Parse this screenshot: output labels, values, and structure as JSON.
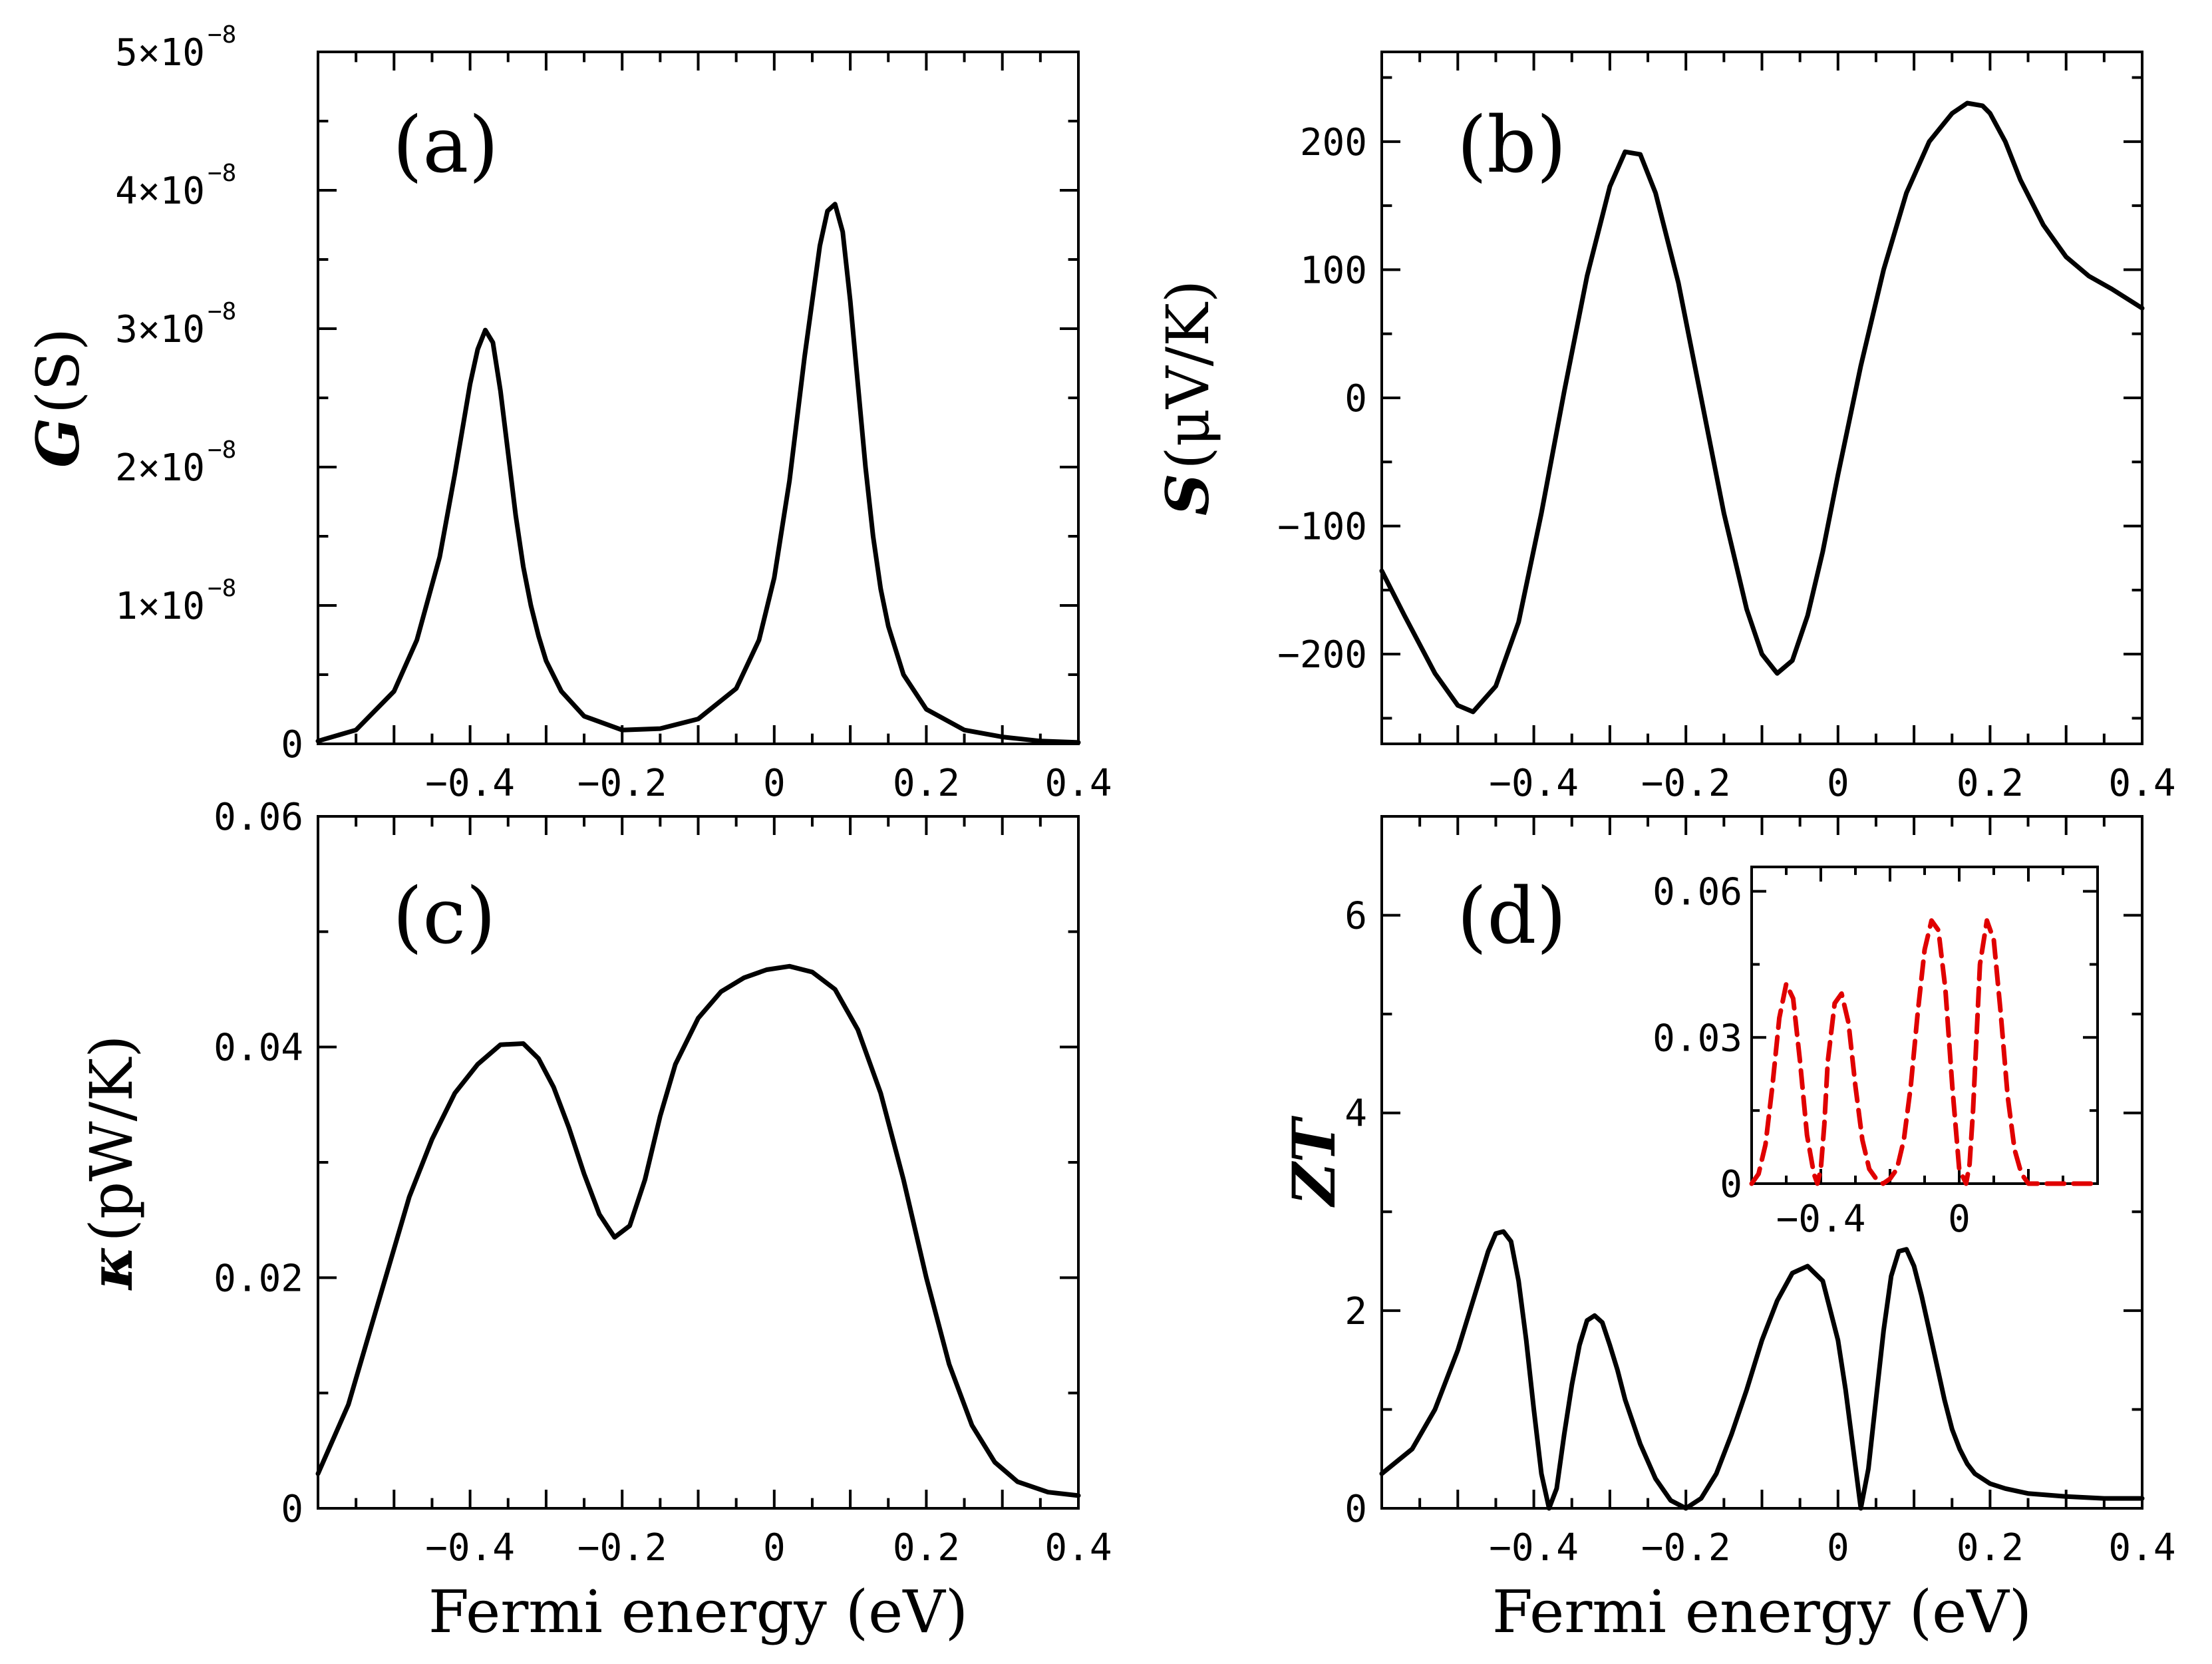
{
  "colors": {
    "main_curve": "#000000",
    "inset_curve": "#e00000"
  },
  "chart_data": [
    {
      "id": "a",
      "type": "line",
      "panel_label": "(a)",
      "ylabel_symbol": "G",
      "ylabel_unit": "(S)",
      "xlabel": "",
      "xlim": [
        -0.6,
        0.4
      ],
      "ylim": [
        0,
        5e-08
      ],
      "xticks": [
        {
          "v": -0.4,
          "label": "-0.4"
        },
        {
          "v": -0.2,
          "label": "-0.2"
        },
        {
          "v": 0,
          "label": "0"
        },
        {
          "v": 0.2,
          "label": "0.2"
        },
        {
          "v": 0.4,
          "label": "0.4"
        }
      ],
      "yticks": [
        {
          "v": 0,
          "label": "0"
        },
        {
          "v": 1e-08,
          "label": "1×10",
          "exp": "-8"
        },
        {
          "v": 2e-08,
          "label": "2×10",
          "exp": "-8"
        },
        {
          "v": 3e-08,
          "label": "3×10",
          "exp": "-8"
        },
        {
          "v": 4e-08,
          "label": "4×10",
          "exp": "-8"
        },
        {
          "v": 5e-08,
          "label": "5×10",
          "exp": "-8"
        }
      ],
      "series": [
        {
          "name": "G",
          "x": [
            -0.6,
            -0.55,
            -0.5,
            -0.47,
            -0.44,
            -0.42,
            -0.4,
            -0.39,
            -0.38,
            -0.37,
            -0.36,
            -0.35,
            -0.34,
            -0.33,
            -0.32,
            -0.31,
            -0.3,
            -0.28,
            -0.25,
            -0.2,
            -0.15,
            -0.1,
            -0.05,
            -0.02,
            0.0,
            0.02,
            0.04,
            0.06,
            0.07,
            0.08,
            0.09,
            0.1,
            0.11,
            0.12,
            0.13,
            0.14,
            0.15,
            0.17,
            0.2,
            0.25,
            0.3,
            0.35,
            0.4
          ],
          "y": [
            2e-10,
            1e-09,
            3.8e-09,
            7.5e-09,
            1.35e-08,
            1.95e-08,
            2.6e-08,
            2.85e-08,
            2.99e-08,
            2.9e-08,
            2.55e-08,
            2.1e-08,
            1.65e-08,
            1.28e-08,
            1e-08,
            7.8e-09,
            6e-09,
            3.8e-09,
            2e-09,
            1e-09,
            1.1e-09,
            1.8e-09,
            4e-09,
            7.5e-09,
            1.2e-08,
            1.9e-08,
            2.8e-08,
            3.6e-08,
            3.85e-08,
            3.9e-08,
            3.7e-08,
            3.2e-08,
            2.6e-08,
            2e-08,
            1.5e-08,
            1.12e-08,
            8.5e-09,
            5e-09,
            2.5e-09,
            1e-09,
            5e-10,
            2e-10,
            1e-10
          ]
        }
      ]
    },
    {
      "id": "b",
      "type": "line",
      "panel_label": "(b)",
      "ylabel_symbol": "S",
      "ylabel_unit": "(μV/K)",
      "xlabel": "",
      "xlim": [
        -0.6,
        0.4
      ],
      "ylim": [
        -270,
        270
      ],
      "xticks": [
        {
          "v": -0.4,
          "label": "-0.4"
        },
        {
          "v": -0.2,
          "label": "-0.2"
        },
        {
          "v": 0,
          "label": "0"
        },
        {
          "v": 0.2,
          "label": "0.2"
        },
        {
          "v": 0.4,
          "label": "0.4"
        }
      ],
      "yticks": [
        {
          "v": -200,
          "label": "-200"
        },
        {
          "v": -100,
          "label": "-100"
        },
        {
          "v": 0,
          "label": "0"
        },
        {
          "v": 100,
          "label": "100"
        },
        {
          "v": 200,
          "label": "200"
        }
      ],
      "series": [
        {
          "name": "S",
          "x": [
            -0.6,
            -0.57,
            -0.53,
            -0.5,
            -0.48,
            -0.45,
            -0.42,
            -0.39,
            -0.36,
            -0.33,
            -0.3,
            -0.28,
            -0.26,
            -0.24,
            -0.21,
            -0.18,
            -0.15,
            -0.12,
            -0.1,
            -0.08,
            -0.06,
            -0.04,
            -0.02,
            0.0,
            0.03,
            0.06,
            0.09,
            0.12,
            0.15,
            0.17,
            0.19,
            0.2,
            0.22,
            0.24,
            0.27,
            0.3,
            0.33,
            0.36,
            0.4
          ],
          "y": [
            -135,
            -170,
            -215,
            -240,
            -245,
            -225,
            -175,
            -90,
            5,
            95,
            165,
            192,
            190,
            160,
            90,
            0,
            -90,
            -165,
            -200,
            -215,
            -205,
            -170,
            -120,
            -60,
            25,
            100,
            160,
            200,
            222,
            230,
            228,
            222,
            200,
            170,
            135,
            110,
            95,
            85,
            70
          ]
        }
      ]
    },
    {
      "id": "c",
      "type": "line",
      "panel_label": "(c)",
      "ylabel_symbol": "κ",
      "ylabel_unit": "(pW/K)",
      "xlabel": "Fermi energy (eV)",
      "xlim": [
        -0.6,
        0.4
      ],
      "ylim": [
        0,
        0.06
      ],
      "xticks": [
        {
          "v": -0.4,
          "label": "-0.4"
        },
        {
          "v": -0.2,
          "label": "-0.2"
        },
        {
          "v": 0,
          "label": "0"
        },
        {
          "v": 0.2,
          "label": "0.2"
        },
        {
          "v": 0.4,
          "label": "0.4"
        }
      ],
      "yticks": [
        {
          "v": 0,
          "label": "0"
        },
        {
          "v": 0.02,
          "label": "0.02"
        },
        {
          "v": 0.04,
          "label": "0.04"
        },
        {
          "v": 0.06,
          "label": "0.06"
        }
      ],
      "series": [
        {
          "name": "kappa",
          "x": [
            -0.6,
            -0.56,
            -0.52,
            -0.48,
            -0.45,
            -0.42,
            -0.39,
            -0.36,
            -0.33,
            -0.31,
            -0.29,
            -0.27,
            -0.25,
            -0.23,
            -0.21,
            -0.19,
            -0.17,
            -0.15,
            -0.13,
            -0.1,
            -0.07,
            -0.04,
            -0.01,
            0.02,
            0.05,
            0.08,
            0.11,
            0.14,
            0.17,
            0.2,
            0.23,
            0.26,
            0.29,
            0.32,
            0.36,
            0.4
          ],
          "y": [
            0.003,
            0.009,
            0.018,
            0.027,
            0.032,
            0.036,
            0.0385,
            0.0402,
            0.0403,
            0.039,
            0.0365,
            0.033,
            0.029,
            0.0255,
            0.0235,
            0.0245,
            0.0285,
            0.034,
            0.0385,
            0.0425,
            0.0448,
            0.046,
            0.0467,
            0.047,
            0.0465,
            0.045,
            0.0415,
            0.036,
            0.0285,
            0.02,
            0.0125,
            0.0072,
            0.004,
            0.0023,
            0.0014,
            0.0011
          ]
        }
      ]
    },
    {
      "id": "d",
      "type": "line",
      "panel_label": "(d)",
      "ylabel_symbol": "ZT",
      "ylabel_unit": "",
      "xlabel": "Fermi energy (eV)",
      "xlim": [
        -0.6,
        0.4
      ],
      "ylim": [
        0,
        7
      ],
      "xticks": [
        {
          "v": -0.4,
          "label": "-0.4"
        },
        {
          "v": -0.2,
          "label": "-0.2"
        },
        {
          "v": 0,
          "label": "0"
        },
        {
          "v": 0.2,
          "label": "0.2"
        },
        {
          "v": 0.4,
          "label": "0.4"
        }
      ],
      "yticks": [
        {
          "v": 0,
          "label": "0"
        },
        {
          "v": 2,
          "label": "2"
        },
        {
          "v": 4,
          "label": "4"
        },
        {
          "v": 6,
          "label": "6"
        }
      ],
      "series": [
        {
          "name": "ZT",
          "x": [
            -0.6,
            -0.56,
            -0.53,
            -0.5,
            -0.48,
            -0.46,
            -0.45,
            -0.44,
            -0.43,
            -0.42,
            -0.41,
            -0.4,
            -0.39,
            -0.38,
            -0.37,
            -0.36,
            -0.35,
            -0.34,
            -0.33,
            -0.32,
            -0.31,
            -0.3,
            -0.29,
            -0.28,
            -0.26,
            -0.24,
            -0.22,
            -0.2,
            -0.18,
            -0.16,
            -0.14,
            -0.12,
            -0.1,
            -0.08,
            -0.06,
            -0.04,
            -0.02,
            0.0,
            0.01,
            0.02,
            0.03,
            0.04,
            0.05,
            0.06,
            0.07,
            0.08,
            0.09,
            0.1,
            0.11,
            0.12,
            0.13,
            0.14,
            0.15,
            0.16,
            0.17,
            0.18,
            0.2,
            0.22,
            0.25,
            0.3,
            0.35,
            0.4
          ],
          "y": [
            0.35,
            0.6,
            1.0,
            1.6,
            2.1,
            2.6,
            2.78,
            2.8,
            2.7,
            2.3,
            1.7,
            1.0,
            0.35,
            0.0,
            0.2,
            0.75,
            1.25,
            1.65,
            1.9,
            1.95,
            1.88,
            1.65,
            1.4,
            1.1,
            0.65,
            0.3,
            0.08,
            0.0,
            0.1,
            0.35,
            0.75,
            1.2,
            1.7,
            2.1,
            2.38,
            2.45,
            2.3,
            1.7,
            1.2,
            0.6,
            0.0,
            0.4,
            1.1,
            1.8,
            2.35,
            2.6,
            2.62,
            2.45,
            2.15,
            1.8,
            1.45,
            1.1,
            0.8,
            0.6,
            0.45,
            0.35,
            0.25,
            0.2,
            0.15,
            0.12,
            0.1,
            0.1
          ]
        }
      ]
    },
    {
      "id": "d-inset",
      "type": "line",
      "panel_label": "",
      "xlim": [
        -0.6,
        0.4
      ],
      "ylim": [
        0,
        0.065
      ],
      "xticks": [
        {
          "v": -0.4,
          "label": "-0.4"
        },
        {
          "v": 0,
          "label": "0"
        }
      ],
      "yticks": [
        {
          "v": 0,
          "label": "0"
        },
        {
          "v": 0.03,
          "label": "0.03"
        },
        {
          "v": 0.06,
          "label": "0.06"
        }
      ],
      "series": [
        {
          "name": "inset",
          "style": "dashed",
          "x": [
            -0.6,
            -0.58,
            -0.56,
            -0.54,
            -0.52,
            -0.5,
            -0.48,
            -0.46,
            -0.44,
            -0.42,
            -0.41,
            -0.4,
            -0.39,
            -0.38,
            -0.36,
            -0.34,
            -0.32,
            -0.3,
            -0.28,
            -0.26,
            -0.24,
            -0.22,
            -0.2,
            -0.18,
            -0.16,
            -0.14,
            -0.12,
            -0.1,
            -0.08,
            -0.06,
            -0.04,
            -0.02,
            0.0,
            0.02,
            0.03,
            0.04,
            0.05,
            0.06,
            0.08,
            0.1,
            0.12,
            0.14,
            0.16,
            0.18,
            0.2,
            0.22,
            0.24,
            0.26,
            0.28,
            0.3,
            0.32,
            0.34,
            0.36,
            0.38,
            0.4
          ],
          "y": [
            0.0,
            0.002,
            0.008,
            0.02,
            0.034,
            0.041,
            0.038,
            0.025,
            0.01,
            0.002,
            0.0,
            0.003,
            0.012,
            0.025,
            0.037,
            0.039,
            0.033,
            0.02,
            0.009,
            0.003,
            0.001,
            0.0,
            0.001,
            0.003,
            0.009,
            0.02,
            0.035,
            0.048,
            0.054,
            0.052,
            0.04,
            0.02,
            0.003,
            0.0,
            0.004,
            0.015,
            0.03,
            0.045,
            0.054,
            0.05,
            0.035,
            0.018,
            0.007,
            0.002,
            0.0,
            0.0,
            0.0,
            0.0,
            0.0,
            0.0,
            0.0,
            0.0,
            0.0,
            0.0,
            0.0
          ]
        }
      ]
    }
  ]
}
